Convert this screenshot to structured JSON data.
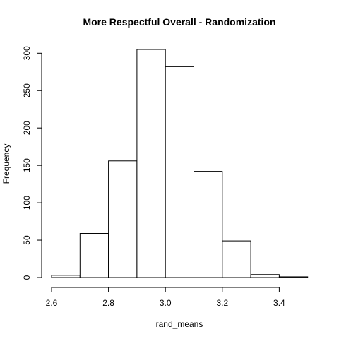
{
  "chart_data": {
    "type": "bar",
    "title": "More Respectful Overall - Randomization",
    "xlabel": "rand_means",
    "ylabel": "Frequency",
    "xlim": [
      2.6,
      3.5
    ],
    "ylim": [
      0,
      300
    ],
    "xticks": [
      "2.6",
      "2.8",
      "3.0",
      "3.2",
      "3.4"
    ],
    "yticks": [
      "0",
      "50",
      "100",
      "150",
      "200",
      "250",
      "300"
    ],
    "bins": [
      {
        "from": 2.6,
        "to": 2.7,
        "value": 3
      },
      {
        "from": 2.7,
        "to": 2.8,
        "value": 59
      },
      {
        "from": 2.8,
        "to": 2.9,
        "value": 156
      },
      {
        "from": 2.9,
        "to": 3.0,
        "value": 305
      },
      {
        "from": 3.0,
        "to": 3.1,
        "value": 282
      },
      {
        "from": 3.1,
        "to": 3.2,
        "value": 142
      },
      {
        "from": 3.2,
        "to": 3.3,
        "value": 49
      },
      {
        "from": 3.3,
        "to": 3.4,
        "value": 4
      },
      {
        "from": 3.4,
        "to": 3.5,
        "value": 1
      }
    ]
  }
}
